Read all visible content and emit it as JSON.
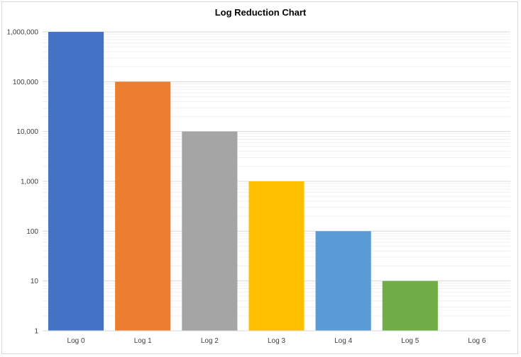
{
  "chart_data": {
    "type": "bar",
    "title": "Log Reduction Chart",
    "xlabel": "",
    "ylabel": "",
    "yscale": "log",
    "ylim": [
      1,
      1000000
    ],
    "grid": true,
    "legend": "none",
    "categories": [
      "Log 0",
      "Log 1",
      "Log 2",
      "Log 3",
      "Log 4",
      "Log 5",
      "Log 6"
    ],
    "values": [
      1000000,
      100000,
      10000,
      1000,
      100,
      10,
      1
    ],
    "yticks": [
      1,
      10,
      100,
      1000,
      10000,
      100000,
      1000000
    ],
    "ytick_labels": [
      "1",
      "10",
      "100",
      "1,000",
      "10,000",
      "100,000",
      "1,000,000"
    ],
    "colors": [
      "#4472C4",
      "#ED7D31",
      "#A5A5A5",
      "#FFC000",
      "#5B9BD5",
      "#70AD47",
      "#264478"
    ]
  }
}
